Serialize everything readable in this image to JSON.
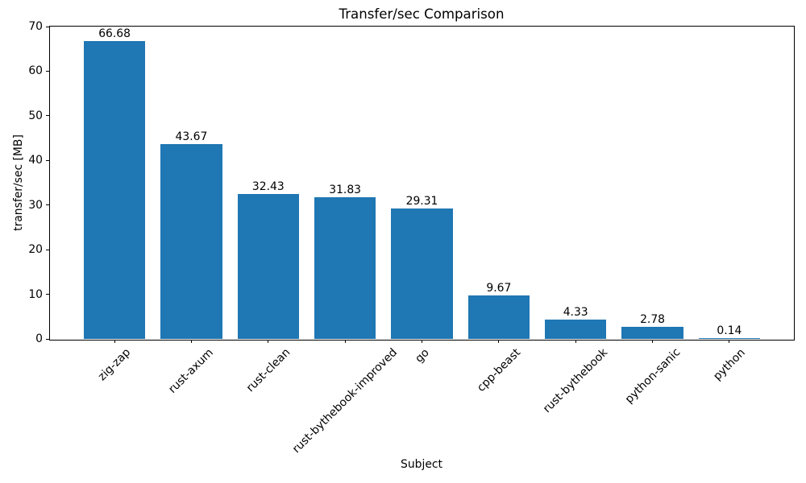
{
  "chart_data": {
    "type": "bar",
    "title": "Transfer/sec Comparison",
    "xlabel": "Subject",
    "ylabel": "transfer/sec [MB]",
    "categories": [
      "zig-zap",
      "rust-axum",
      "rust-clean",
      "rust-bythebook-improved",
      "go",
      "cpp-beast",
      "rust-bythebook",
      "python-sanic",
      "python"
    ],
    "values": [
      66.68,
      43.67,
      32.43,
      31.83,
      29.31,
      9.67,
      4.33,
      2.78,
      0.14
    ],
    "value_labels": [
      "66.68",
      "43.67",
      "32.43",
      "31.83",
      "29.31",
      "9.67",
      "4.33",
      "2.78",
      "0.14"
    ],
    "ylim": [
      0,
      70
    ],
    "yticks": [
      0,
      10,
      20,
      30,
      40,
      50,
      60,
      70
    ],
    "x_tick_rotation_deg": 45,
    "bar_color": "#1f77b4",
    "text_color": "#000000",
    "axis_color": "#000000",
    "background_color": "#ffffff",
    "grid": false,
    "legend_position": "none"
  }
}
